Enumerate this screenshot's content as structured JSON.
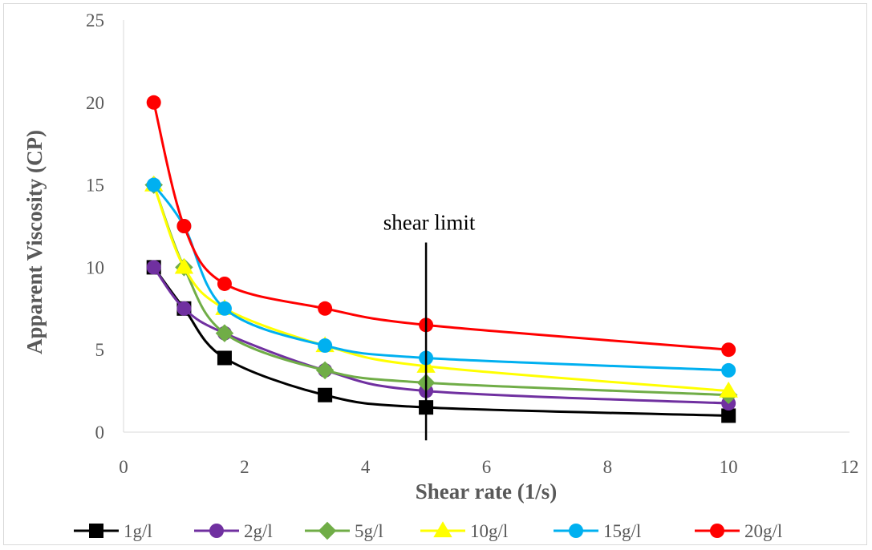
{
  "chart_data": {
    "type": "line",
    "title": "",
    "xlabel": "Shear rate (1/s)",
    "ylabel": "Apparent Viscosity (CP)",
    "xlim": [
      0,
      12
    ],
    "ylim": [
      0,
      25
    ],
    "xticks": [
      0,
      2,
      4,
      6,
      8,
      10,
      12
    ],
    "yticks": [
      0,
      5,
      10,
      15,
      20,
      25
    ],
    "grid": false,
    "legend": "bottom",
    "x": [
      0.5,
      1,
      1.67,
      3.33,
      5,
      10
    ],
    "series": [
      {
        "name": "1g/l",
        "marker": "square",
        "color": "#000000",
        "values": [
          10,
          7.5,
          4.5,
          2.25,
          1.5,
          1
        ]
      },
      {
        "name": "2g/l",
        "marker": "circle",
        "color": "#7030a0",
        "values": [
          10,
          7.5,
          6,
          3.75,
          2.5,
          1.75
        ]
      },
      {
        "name": "5g/l",
        "marker": "diamond",
        "color": "#70ad47",
        "values": [
          15,
          10,
          6,
          3.75,
          3,
          2.25
        ]
      },
      {
        "name": "10g/l",
        "marker": "triangle",
        "color": "#ffff00",
        "values": [
          15,
          10,
          7.5,
          5.25,
          4,
          2.5
        ]
      },
      {
        "name": "15g/l",
        "marker": "circle",
        "color": "#00b0f0",
        "values": [
          15,
          12.5,
          7.5,
          5.25,
          4.5,
          3.75
        ]
      },
      {
        "name": "20g/l",
        "marker": "circle",
        "color": "#ff0000",
        "values": [
          20,
          12.5,
          9,
          7.5,
          6.5,
          5
        ]
      }
    ],
    "annotations": [
      {
        "text": "shear limit",
        "x": 5,
        "y_top": 11.5,
        "y_bottom": -0.5
      }
    ]
  }
}
